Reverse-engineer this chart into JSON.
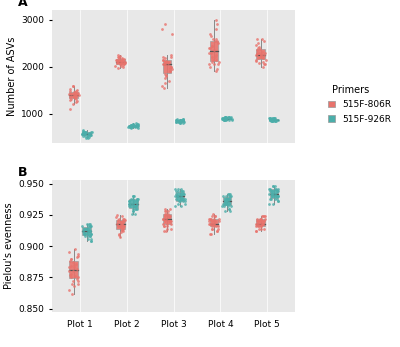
{
  "plots": [
    "Plot 1",
    "Plot 2",
    "Plot 3",
    "Plot 4",
    "Plot 5"
  ],
  "primer1_color": "#E8736C",
  "primer2_color": "#4BAEAA",
  "primer1_label": "515F-806R",
  "primer2_label": "515F-926R",
  "bg_color": "#E8E8E8",
  "ylabel_A": "Number of ASVs",
  "ylabel_B": "Pielou's evenness",
  "legend_title": "Primers",
  "asv_806R": {
    "Plot 1": [
      1450,
      1380,
      1500,
      1420,
      1350,
      1300,
      1380,
      1420,
      1480,
      1350,
      1280,
      1320,
      1410,
      1390,
      1360,
      1440,
      1470,
      1310,
      1340,
      1370,
      1430,
      1460,
      1490,
      1400,
      1520,
      1250,
      1580,
      1600,
      1200,
      1100
    ],
    "Plot 2": [
      2050,
      2100,
      2150,
      2000,
      2080,
      2120,
      2200,
      2180,
      2050,
      2020,
      1980,
      2100,
      2160,
      2090,
      2130,
      2070,
      2110,
      2040,
      2080,
      2220,
      2250,
      2180,
      2100,
      2060,
      2140,
      2160,
      2080,
      2020,
      2200,
      2140
    ],
    "Plot 3": [
      2100,
      2050,
      1900,
      1800,
      2200,
      2250,
      1850,
      1750,
      1650,
      2150,
      2080,
      1980,
      2000,
      2120,
      1950,
      1820,
      2060,
      2180,
      1700,
      2900,
      2800,
      2700,
      1600,
      2000,
      2100,
      1550,
      2050,
      2150,
      1900,
      2200
    ],
    "Plot 4": [
      2400,
      2300,
      2500,
      2600,
      2200,
      2100,
      2050,
      2000,
      2150,
      2250,
      2350,
      2450,
      2550,
      2650,
      2700,
      2800,
      2900,
      3000,
      2050,
      1900,
      1950,
      2050,
      2600,
      2550,
      2450,
      2400,
      2300,
      2200,
      2100,
      2150
    ],
    "Plot 5": [
      2200,
      2250,
      2300,
      2150,
      2100,
      2050,
      2000,
      2400,
      2500,
      2600,
      2300,
      2350,
      2150,
      2050,
      2250,
      2320,
      2280,
      2380,
      2130,
      2180,
      2080,
      2420,
      2460,
      2240,
      2190,
      2600,
      2550,
      2200,
      2250,
      2300
    ]
  },
  "asv_926R": {
    "Plot 1": [
      580,
      560,
      600,
      570,
      550,
      590,
      610,
      540,
      530,
      580,
      600,
      570,
      610,
      555,
      545,
      575,
      595,
      560,
      540,
      520,
      500,
      580,
      600,
      610,
      490,
      620,
      480,
      640,
      660,
      510
    ],
    "Plot 2": [
      730,
      720,
      750,
      740,
      710,
      760,
      780,
      700,
      720,
      740,
      760,
      770,
      730,
      750,
      710,
      720,
      740,
      760,
      780,
      790,
      700,
      720,
      750,
      730,
      800,
      710,
      740,
      770,
      790,
      720
    ],
    "Plot 3": [
      840,
      820,
      860,
      850,
      830,
      870,
      880,
      810,
      840,
      860,
      870,
      840,
      820,
      830,
      850,
      870,
      880,
      840,
      860,
      820,
      810,
      870,
      880,
      850,
      840,
      830,
      820,
      810,
      860,
      870
    ],
    "Plot 4": [
      890,
      870,
      910,
      900,
      880,
      920,
      930,
      860,
      890,
      910,
      920,
      890,
      870,
      880,
      900,
      920,
      930,
      890,
      910,
      870,
      860,
      920,
      930,
      900,
      890,
      880,
      870,
      860,
      910,
      920
    ],
    "Plot 5": [
      870,
      850,
      890,
      880,
      860,
      900,
      910,
      840,
      870,
      890,
      900,
      870,
      850,
      860,
      880,
      900,
      910,
      870,
      890,
      850,
      840,
      900,
      910,
      880,
      870,
      860,
      850,
      840,
      890,
      900
    ]
  },
  "pie_806R": {
    "Plot 1": [
      0.878,
      0.882,
      0.888,
      0.892,
      0.895,
      0.885,
      0.875,
      0.872,
      0.88,
      0.883,
      0.886,
      0.89,
      0.876,
      0.884,
      0.887,
      0.891,
      0.874,
      0.87,
      0.868,
      0.894,
      0.898,
      0.865,
      0.862,
      0.88,
      0.87,
      0.875,
      0.883,
      0.877,
      0.89,
      0.872
    ],
    "Plot 2": [
      0.916,
      0.919,
      0.922,
      0.912,
      0.909,
      0.915,
      0.918,
      0.921,
      0.924,
      0.913,
      0.91,
      0.917,
      0.92,
      0.923,
      0.914,
      0.911,
      0.916,
      0.919,
      0.922,
      0.925,
      0.907,
      0.913,
      0.918,
      0.921,
      0.916,
      0.92,
      0.914,
      0.918,
      0.922,
      0.916
    ],
    "Plot 3": [
      0.92,
      0.924,
      0.928,
      0.916,
      0.912,
      0.926,
      0.93,
      0.922,
      0.918,
      0.914,
      0.924,
      0.92,
      0.926,
      0.922,
      0.918,
      0.93,
      0.928,
      0.924,
      0.916,
      0.912,
      0.92,
      0.924,
      0.928,
      0.916,
      0.922,
      0.918,
      0.914,
      0.924,
      0.92,
      0.926
    ],
    "Plot 4": [
      0.918,
      0.92,
      0.922,
      0.916,
      0.914,
      0.924,
      0.91,
      0.912,
      0.92,
      0.922,
      0.918,
      0.916,
      0.924,
      0.926,
      0.912,
      0.91,
      0.92,
      0.918,
      0.922,
      0.914,
      0.916,
      0.924,
      0.92,
      0.918,
      0.922,
      0.916,
      0.92,
      0.914,
      0.918,
      0.922
    ],
    "Plot 5": [
      0.918,
      0.92,
      0.922,
      0.924,
      0.916,
      0.914,
      0.912,
      0.92,
      0.918,
      0.922,
      0.924,
      0.916,
      0.918,
      0.92,
      0.914,
      0.916,
      0.922,
      0.924,
      0.912,
      0.918,
      0.92,
      0.916,
      0.922,
      0.924,
      0.918,
      0.92,
      0.916,
      0.922,
      0.914,
      0.918
    ]
  },
  "pie_926R": {
    "Plot 1": [
      0.908,
      0.912,
      0.916,
      0.904,
      0.91,
      0.914,
      0.918,
      0.906,
      0.912,
      0.916,
      0.908,
      0.914,
      0.918,
      0.91,
      0.906,
      0.914,
      0.912,
      0.908,
      0.916,
      0.91,
      0.914,
      0.918,
      0.904,
      0.912,
      0.91,
      0.916,
      0.908,
      0.912,
      0.916,
      0.91
    ],
    "Plot 2": [
      0.93,
      0.934,
      0.938,
      0.926,
      0.932,
      0.936,
      0.94,
      0.928,
      0.934,
      0.938,
      0.93,
      0.936,
      0.94,
      0.932,
      0.928,
      0.936,
      0.934,
      0.93,
      0.938,
      0.932,
      0.936,
      0.94,
      0.926,
      0.934,
      0.932,
      0.938,
      0.93,
      0.934,
      0.938,
      0.932
    ],
    "Plot 3": [
      0.936,
      0.94,
      0.944,
      0.932,
      0.938,
      0.942,
      0.946,
      0.934,
      0.94,
      0.944,
      0.936,
      0.942,
      0.946,
      0.938,
      0.934,
      0.942,
      0.94,
      0.936,
      0.944,
      0.938,
      0.942,
      0.946,
      0.932,
      0.94,
      0.938,
      0.944,
      0.936,
      0.94,
      0.944,
      0.938
    ],
    "Plot 4": [
      0.932,
      0.936,
      0.94,
      0.928,
      0.934,
      0.938,
      0.942,
      0.93,
      0.936,
      0.94,
      0.932,
      0.938,
      0.942,
      0.934,
      0.93,
      0.938,
      0.936,
      0.932,
      0.94,
      0.934,
      0.938,
      0.942,
      0.928,
      0.936,
      0.934,
      0.94,
      0.932,
      0.936,
      0.94,
      0.934
    ],
    "Plot 5": [
      0.938,
      0.942,
      0.946,
      0.934,
      0.94,
      0.944,
      0.948,
      0.936,
      0.942,
      0.946,
      0.938,
      0.944,
      0.948,
      0.94,
      0.936,
      0.944,
      0.942,
      0.938,
      0.946,
      0.94,
      0.944,
      0.948,
      0.934,
      0.942,
      0.94,
      0.946,
      0.938,
      0.942,
      0.946,
      0.94
    ]
  }
}
